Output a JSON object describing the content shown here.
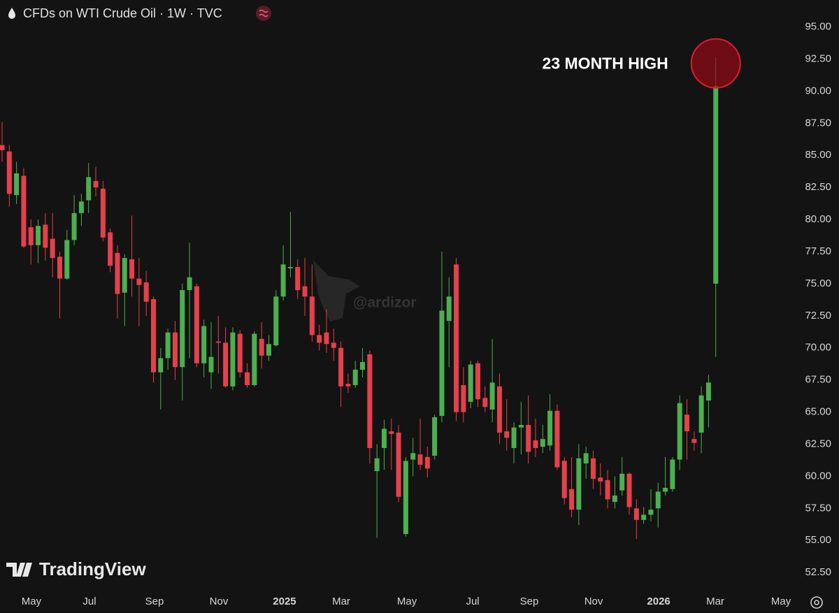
{
  "chart_data": {
    "type": "candlestick",
    "title": "CFDs on WTI Crude Oil · 1W · TVC",
    "annotation": "23 MONTH HIGH",
    "watermark": "@ardizor",
    "brand": "TradingView",
    "up_color": "#4caf50",
    "down_color": "#e5404c",
    "open": [
      85.8,
      85.3,
      81.9,
      83.4,
      79.4,
      78.0,
      79.6,
      78.5,
      77.1,
      75.4,
      78.4,
      80.5,
      81.5,
      83.0,
      82.4,
      79.0,
      77.4,
      74.3,
      76.9,
      75.4,
      75.1,
      73.8,
      68.1,
      69.2,
      71.2,
      68.5,
      74.5,
      74.8,
      68.8,
      68.1,
      70.5,
      70.4,
      67.0,
      71.1,
      68.1,
      67.1,
      70.7,
      69.4,
      70.2,
      74.0,
      76.2,
      76.3,
      74.8,
      74.0,
      71.0,
      71.2,
      70.4,
      70.0,
      67.2,
      67.1,
      68.3,
      69.5,
      60.4,
      62.2,
      63.5,
      63.4,
      55.5,
      61.3,
      61.7,
      61.5,
      61.6,
      64.7,
      72.1,
      76.5,
      67.1,
      65.8,
      68.8,
      66.1,
      65.2,
      67.0,
      63.5,
      62.2,
      63.8,
      64.0,
      62.8,
      62.3,
      62.4,
      65.1,
      61.2,
      59.0,
      57.4,
      61.0,
      61.4,
      59.9,
      59.7,
      58.0,
      58.9,
      60.2,
      57.5,
      56.6,
      57.0,
      57.5,
      58.8,
      59.0,
      61.3,
      64.8,
      62.9,
      63.4,
      65.9,
      75.0
    ],
    "high": [
      87.6,
      85.8,
      84.5,
      84.0,
      80.0,
      80.0,
      80.5,
      80.5,
      77.5,
      79.2,
      81.9,
      82.0,
      84.4,
      84.1,
      83.0,
      79.3,
      78.0,
      77.3,
      80.3,
      77.0,
      76.0,
      74.0,
      70.0,
      71.5,
      72.1,
      75.0,
      78.2,
      75.0,
      72.2,
      72.0,
      72.5,
      71.6,
      71.6,
      71.4,
      68.8,
      71.3,
      72.0,
      71.0,
      74.5,
      78.0,
      80.6,
      76.9,
      77.0,
      76.5,
      71.8,
      73.0,
      71.5,
      70.5,
      68.0,
      69.0,
      70.0,
      69.8,
      62.5,
      64.4,
      64.5,
      64.0,
      61.5,
      63.0,
      64.5,
      62.3,
      64.8,
      77.5,
      75.5,
      77.0,
      68.5,
      69.0,
      69.0,
      67.0,
      70.7,
      68.0,
      66.0,
      64.2,
      65.8,
      66.3,
      64.5,
      64.0,
      66.4,
      65.6,
      61.5,
      61.5,
      62.5,
      62.3,
      62.0,
      61.0,
      60.5,
      60.0,
      61.5,
      60.3,
      58.2,
      57.6,
      59.0,
      59.5,
      61.5,
      61.5,
      66.3,
      66.0,
      63.5,
      67.0,
      67.9,
      92.6
    ],
    "low": [
      84.5,
      81.0,
      81.2,
      77.8,
      76.5,
      76.6,
      76.8,
      75.5,
      72.3,
      75.3,
      78.0,
      79.5,
      80.5,
      81.8,
      78.3,
      75.9,
      72.3,
      71.7,
      74.0,
      71.7,
      72.5,
      67.3,
      65.2,
      68.3,
      67.5,
      65.9,
      69.2,
      68.5,
      67.7,
      66.8,
      68.0,
      66.9,
      66.7,
      67.7,
      66.9,
      67.0,
      68.4,
      69.0,
      70.1,
      73.7,
      75.5,
      73.8,
      72.5,
      70.5,
      69.8,
      69.6,
      69.0,
      65.4,
      66.5,
      66.9,
      67.7,
      61.0,
      55.2,
      60.5,
      60.5,
      58.0,
      55.3,
      60.0,
      60.5,
      59.9,
      61.3,
      64.2,
      68.5,
      64.3,
      64.2,
      65.3,
      65.4,
      65.0,
      64.2,
      62.5,
      62.0,
      61.0,
      61.7,
      61.0,
      61.5,
      61.8,
      62.0,
      60.5,
      57.8,
      56.8,
      56.2,
      59.8,
      59.0,
      58.5,
      57.5,
      57.5,
      58.5,
      57.0,
      55.1,
      56.3,
      56.5,
      56.0,
      58.5,
      58.8,
      60.5,
      61.3,
      62.0,
      61.8,
      63.8,
      69.3
    ],
    "close": [
      85.4,
      82.0,
      83.6,
      77.9,
      78.0,
      79.5,
      77.8,
      77.0,
      75.4,
      78.4,
      80.5,
      81.4,
      83.3,
      82.5,
      78.6,
      76.4,
      74.2,
      77.0,
      75.4,
      74.9,
      73.6,
      68.1,
      69.2,
      71.2,
      68.5,
      74.5,
      75.5,
      68.8,
      71.7,
      69.3,
      70.4,
      67.0,
      71.2,
      68.1,
      67.1,
      71.1,
      69.4,
      70.3,
      74.0,
      76.5,
      76.3,
      74.5,
      74.0,
      71.0,
      70.4,
      70.3,
      70.0,
      67.0,
      67.0,
      68.3,
      68.9,
      62.2,
      61.4,
      63.7,
      63.3,
      58.4,
      61.2,
      61.8,
      60.9,
      60.6,
      64.6,
      72.9,
      74.0,
      65.0,
      65.0,
      68.7,
      66.0,
      65.4,
      67.3,
      63.4,
      63.0,
      63.8,
      64.0,
      61.9,
      62.2,
      62.9,
      65.1,
      60.7,
      58.3,
      57.4,
      61.4,
      61.8,
      59.8,
      59.6,
      58.2,
      58.5,
      60.2,
      57.6,
      56.6,
      57.0,
      57.4,
      58.8,
      59.1,
      61.3,
      65.7,
      63.5,
      62.6,
      66.3,
      67.3,
      90.4
    ],
    "xlim": [
      -0.29,
      109.5
    ],
    "xticks": [
      {
        "value": 4.07,
        "label": "May"
      },
      {
        "value": 12.12,
        "label": "Jul"
      },
      {
        "value": 21.14,
        "label": "Sep"
      },
      {
        "value": 30.07,
        "label": "Nov"
      },
      {
        "value": 39.18,
        "label": "2025"
      },
      {
        "value": 47.04,
        "label": "Mar"
      },
      {
        "value": 56.16,
        "label": "May"
      },
      {
        "value": 65.28,
        "label": "Jul"
      },
      {
        "value": 73.13,
        "label": "Sep"
      },
      {
        "value": 82.06,
        "label": "Nov"
      },
      {
        "value": 91.08,
        "label": "2026"
      },
      {
        "value": 98.93,
        "label": "Mar"
      },
      {
        "value": 108.05,
        "label": "May"
      }
    ],
    "ylim": [
      51.2,
      97.1
    ],
    "yticks": [
      {
        "value": 95,
        "label": "95.00"
      },
      {
        "value": 92.5,
        "label": "92.50"
      },
      {
        "value": 90,
        "label": "90.00"
      },
      {
        "value": 87.5,
        "label": "87.50"
      },
      {
        "value": 85,
        "label": "85.00"
      },
      {
        "value": 82.5,
        "label": "82.50"
      },
      {
        "value": 80,
        "label": "80.00"
      },
      {
        "value": 77.5,
        "label": "77.50"
      },
      {
        "value": 75,
        "label": "75.00"
      },
      {
        "value": 72.5,
        "label": "72.50"
      },
      {
        "value": 70,
        "label": "70.00"
      },
      {
        "value": 67.5,
        "label": "67.50"
      },
      {
        "value": 65,
        "label": "65.00"
      },
      {
        "value": 62.5,
        "label": "62.50"
      },
      {
        "value": 60,
        "label": "60.00"
      },
      {
        "value": 57.5,
        "label": "57.50"
      },
      {
        "value": 55,
        "label": "55.00"
      },
      {
        "value": 52.5,
        "label": "52.50"
      }
    ],
    "grid": false
  }
}
